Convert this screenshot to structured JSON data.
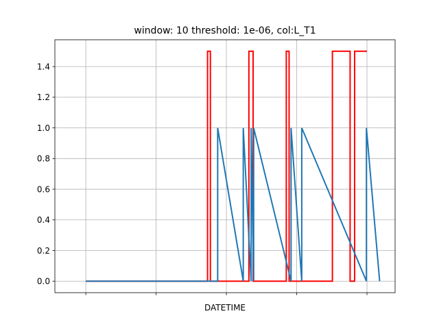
{
  "chart_data": {
    "type": "line",
    "title": "window: 10 threshold: 1e-06, col:L_T1",
    "xlabel": "DATETIME",
    "ylabel": "",
    "grid": true,
    "xlim": [
      -0.11,
      1.1
    ],
    "ylim": [
      -0.075,
      1.575
    ],
    "y_ticks": [
      0.0,
      0.2,
      0.4,
      0.6,
      0.8,
      1.0,
      1.2,
      1.4
    ],
    "y_tick_labels": [
      "0.0",
      "0.2",
      "0.4",
      "0.6",
      "0.8",
      "1.0",
      "1.2",
      "1.4"
    ],
    "x_ticks": [
      0.0,
      0.25,
      0.5,
      0.75,
      1.0
    ],
    "x_tick_labels": [
      "",
      "",
      "",
      "",
      ""
    ],
    "series": [
      {
        "color": "#ff0000",
        "x": [
          0.0,
          0.433,
          0.433,
          0.443,
          0.443,
          0.58,
          0.58,
          0.595,
          0.595,
          0.713,
          0.713,
          0.723,
          0.723,
          0.877,
          0.877,
          0.94,
          0.94,
          0.956,
          0.956,
          1.0
        ],
        "y": [
          0.0,
          0.0,
          1.5,
          1.5,
          0.0,
          0.0,
          1.5,
          1.5,
          0.0,
          0.0,
          1.5,
          1.5,
          0.0,
          0.0,
          1.5,
          1.5,
          0.0,
          0.0,
          1.5,
          1.5
        ]
      },
      {
        "color": "#1f77b4",
        "x": [
          0.0,
          0.469,
          0.469,
          0.56,
          0.56,
          0.588,
          0.588,
          0.597,
          0.597,
          0.73,
          0.73,
          0.768,
          0.768,
          0.998,
          0.998,
          1.045
        ],
        "y": [
          0.0,
          0.0,
          1.0,
          0.0,
          1.0,
          0.0,
          1.0,
          0.0,
          1.0,
          0.0,
          1.0,
          0.0,
          1.0,
          0.0,
          1.0,
          0.0
        ]
      }
    ]
  }
}
